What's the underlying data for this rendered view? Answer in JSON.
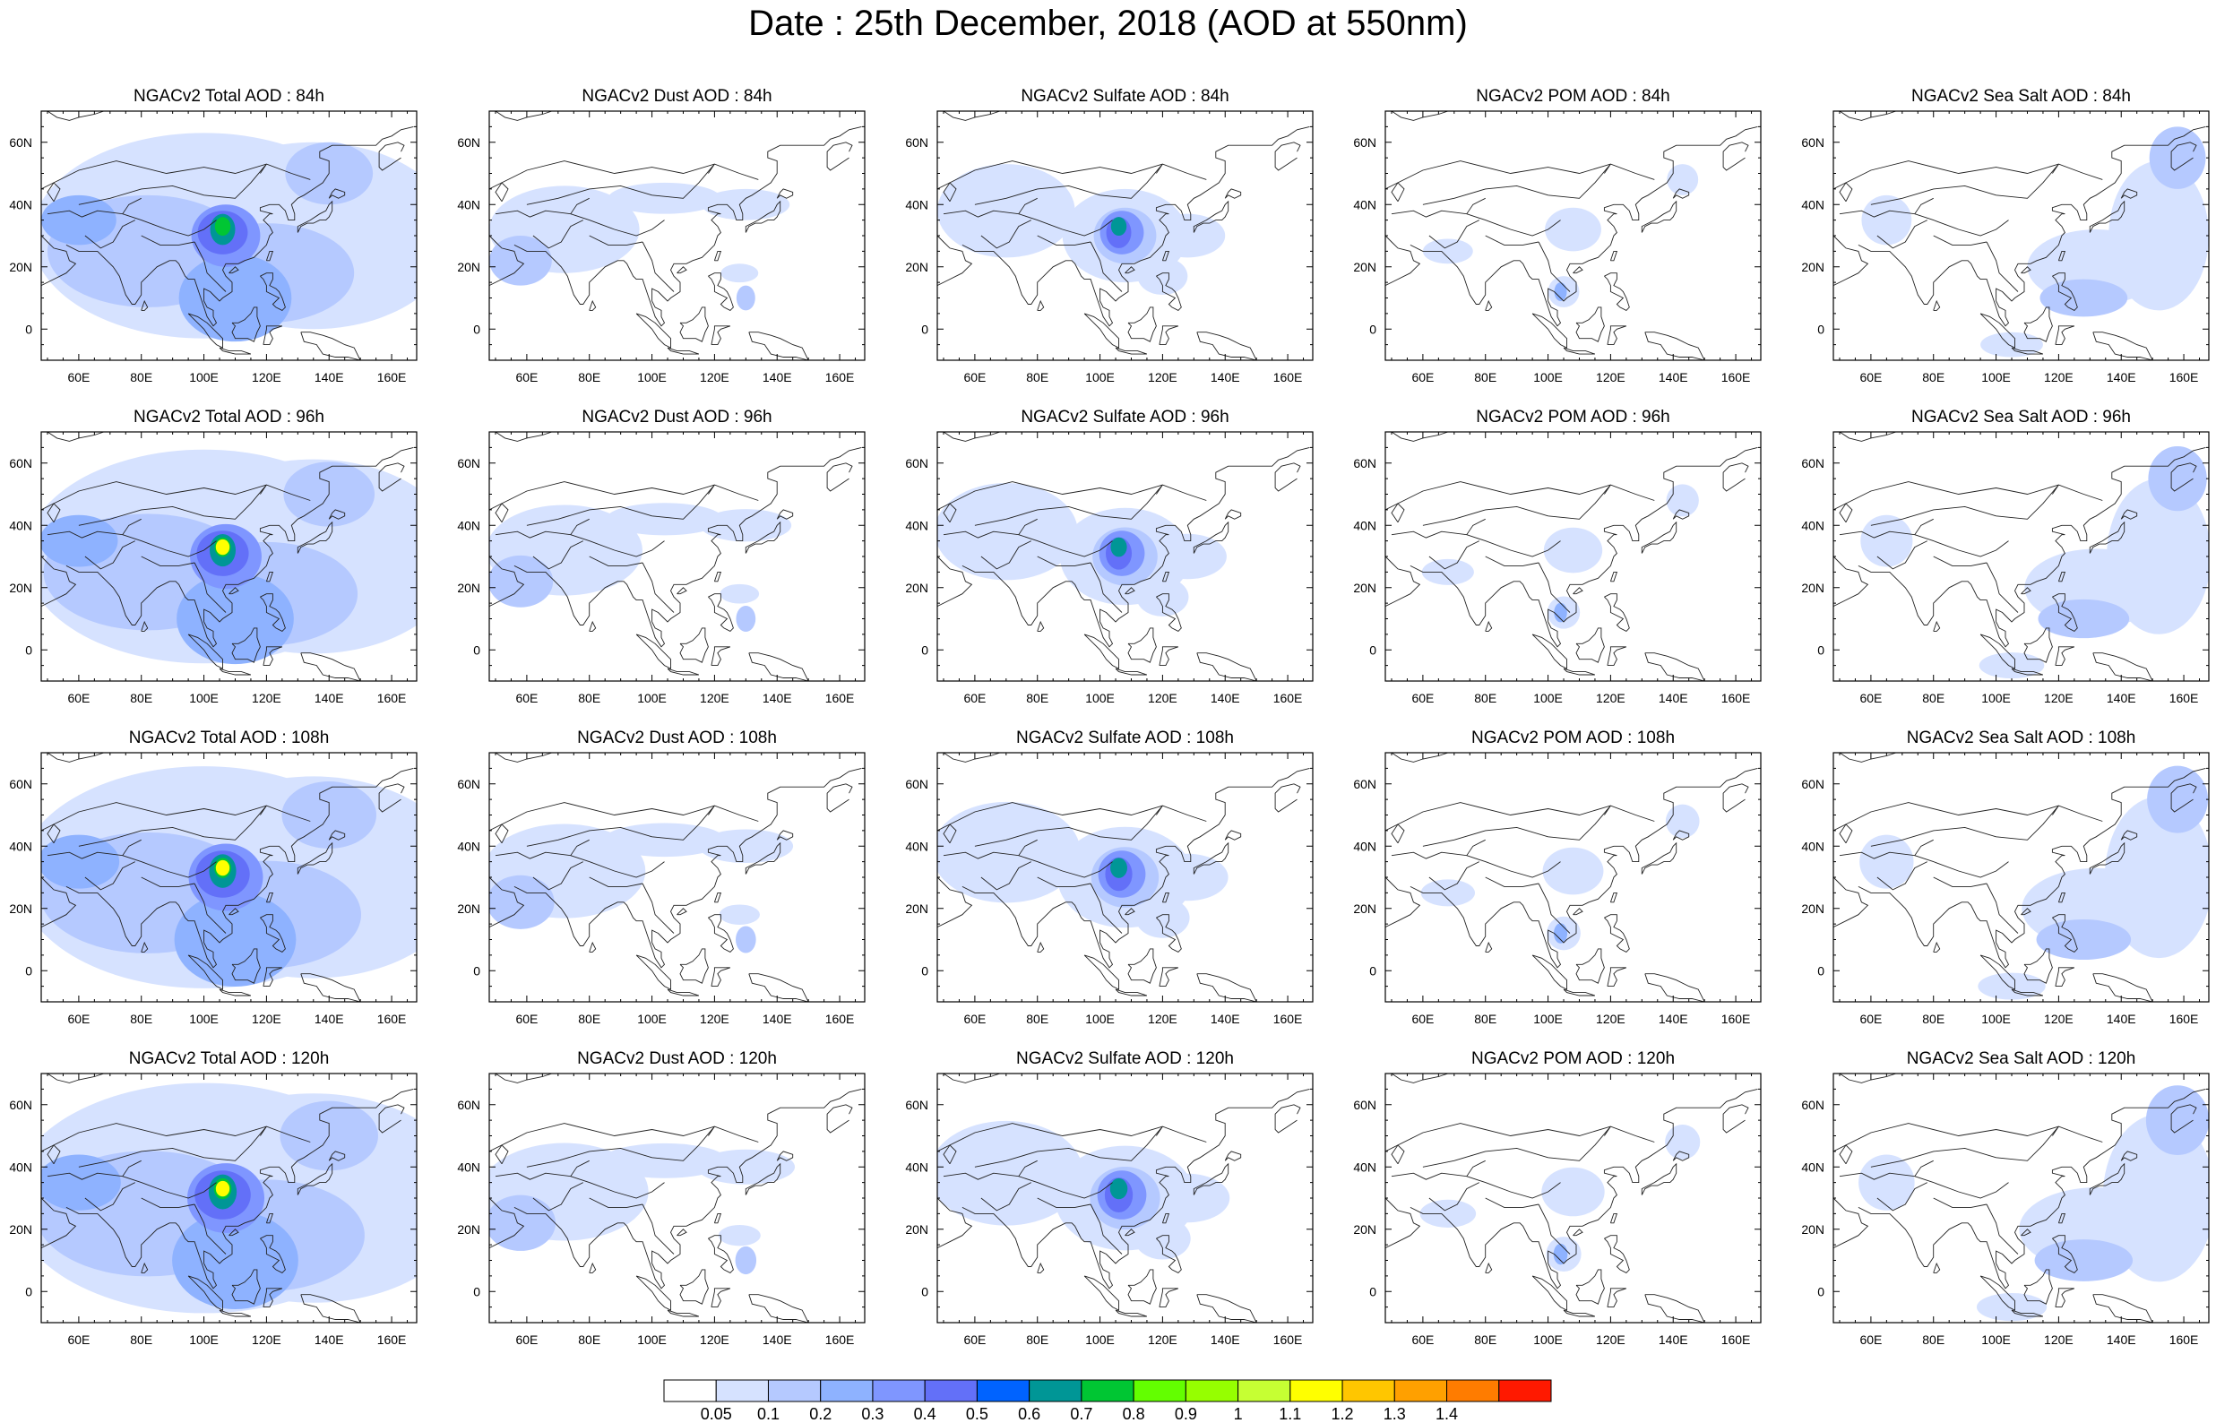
{
  "title": "Date : 25th December, 2018 (AOD at 550nm)",
  "lon_ticks": [
    "60E",
    "80E",
    "100E",
    "120E",
    "140E",
    "160E"
  ],
  "lat_ticks": [
    "60N",
    "40N",
    "20N",
    "0"
  ],
  "colorbar": {
    "labels": [
      "0.05",
      "0.1",
      "0.2",
      "0.3",
      "0.4",
      "0.5",
      "0.6",
      "0.7",
      "0.8",
      "0.9",
      "1",
      "1.1",
      "1.2",
      "1.3",
      "1.4"
    ],
    "colors": [
      "#ffffff",
      "#d6e2ff",
      "#b5c9ff",
      "#8eb2ff",
      "#7f96ff",
      "#6370f8",
      "#0063ff",
      "#009696",
      "#00c633",
      "#63ff00",
      "#96ff00",
      "#c6ff33",
      "#ffff00",
      "#ffc600",
      "#ffa000",
      "#ff7c00",
      "#ff1900"
    ]
  },
  "panels": [
    [
      "NGACv2 Total AOD : 84h",
      "NGACv2 Dust AOD : 84h",
      "NGACv2 Sulfate AOD : 84h",
      "NGACv2 POM AOD : 84h",
      "NGACv2 Sea Salt AOD : 84h"
    ],
    [
      "NGACv2 Total AOD : 96h",
      "NGACv2 Dust AOD : 96h",
      "NGACv2 Sulfate AOD : 96h",
      "NGACv2 POM AOD : 96h",
      "NGACv2 Sea Salt AOD : 96h"
    ],
    [
      "NGACv2 Total AOD : 108h",
      "NGACv2 Dust AOD : 108h",
      "NGACv2 Sulfate AOD : 108h",
      "NGACv2 POM AOD : 108h",
      "NGACv2 Sea Salt AOD : 108h"
    ],
    [
      "NGACv2 Total AOD : 120h",
      "NGACv2 Dust AOD : 120h",
      "NGACv2 Sulfate AOD : 120h",
      "NGACv2 POM AOD : 120h",
      "NGACv2 Sea Salt  AOD : 120h"
    ]
  ]
}
